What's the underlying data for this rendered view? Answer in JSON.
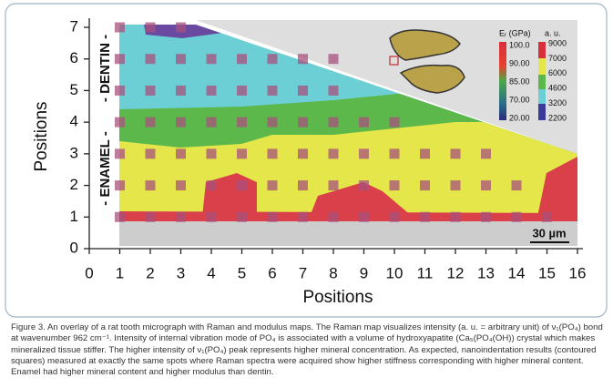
{
  "chart_data": {
    "type": "scatter",
    "xlabel": "Positions",
    "ylabel": "Positions",
    "xlim": [
      0,
      16
    ],
    "ylim": [
      0,
      7
    ],
    "xticks": [
      0,
      1,
      2,
      3,
      4,
      5,
      6,
      7,
      8,
      9,
      10,
      11,
      12,
      13,
      14,
      15,
      16
    ],
    "yticks": [
      0,
      1,
      2,
      3,
      4,
      5,
      6,
      7
    ],
    "point_color": "#a8507e",
    "points": [
      {
        "y": 7,
        "x": [
          1,
          2,
          3
        ]
      },
      {
        "y": 6,
        "x": [
          1,
          2,
          3,
          4,
          5,
          6,
          7,
          8
        ]
      },
      {
        "y": 5,
        "x": [
          1,
          2,
          3,
          4,
          5,
          6,
          7,
          8
        ]
      },
      {
        "y": 4,
        "x": [
          1,
          2,
          3,
          4,
          5,
          6,
          7,
          8,
          9,
          10
        ]
      },
      {
        "y": 3,
        "x": [
          1,
          2,
          3,
          4,
          5,
          6,
          7,
          8,
          9,
          10,
          11,
          12,
          13
        ]
      },
      {
        "y": 2,
        "x": [
          1,
          2,
          3,
          4,
          5,
          6,
          7,
          8,
          9,
          10,
          11,
          12,
          13,
          14
        ]
      },
      {
        "y": 1,
        "x": [
          1,
          2,
          3,
          4,
          5,
          6,
          7,
          8,
          9,
          10,
          11,
          12,
          13,
          14,
          15
        ]
      }
    ],
    "annotations": [
      "- ENAMEL -",
      "- DENTIN -",
      "30 µm"
    ],
    "colorbar": {
      "modulus_title": "Eᵣ (GPa)",
      "modulus_labels": [
        "100.0",
        "90.00",
        "85.00",
        "70.00",
        "20.00"
      ],
      "raman_title": "a. u.",
      "raman_labels": [
        "9000",
        "7000",
        "6000",
        "4600",
        "3200",
        "2200"
      ]
    }
  },
  "caption": "Figure 3. An overlay of a rat tooth micrograph with Raman and modulus maps. The Raman map visualizes intensity (a. u. = arbitrary unit) of ν₁(PO₄) bond at wavenumber 962 cm⁻¹. Intensity of internal vibration mode of PO₄ is associated with a volume of hydroxyapatite (Ca₅(PO₄(OH)) crystal which makes mineralized tissue stiffer. The higher intensity of ν₁(PO₄) peak represents higher mineral concentration. As expected, nanoindentation results (contoured squares) measured at exactly the same spots where Raman spectra were acquired show higher stiffness corresponding with higher mineral content. Enamel had higher mineral content and higher modulus than dentin."
}
